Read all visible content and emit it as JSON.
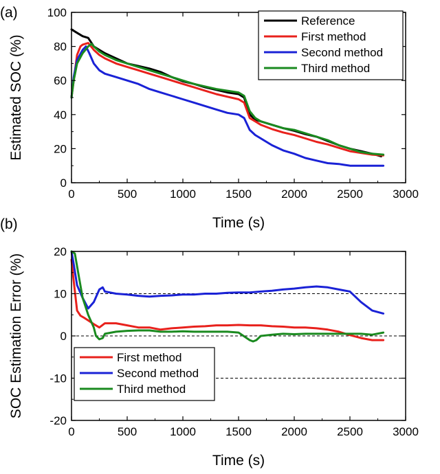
{
  "chart_data": [
    {
      "panel_label": "(a)",
      "type": "line",
      "xlabel": "Time (s)",
      "ylabel": "Estimated SOC (%)",
      "xlim": [
        0,
        3000
      ],
      "ylim": [
        0,
        100
      ],
      "xticks": [
        0,
        500,
        1000,
        1500,
        2000,
        2500,
        3000
      ],
      "yticks": [
        0,
        20,
        40,
        60,
        80,
        100
      ],
      "grid": false,
      "legend_position": "top-right",
      "series": [
        {
          "name": "Reference",
          "color": "#000000",
          "x": [
            0,
            50,
            100,
            150,
            200,
            250,
            300,
            400,
            500,
            600,
            700,
            800,
            900,
            1000,
            1100,
            1200,
            1300,
            1400,
            1500,
            1550,
            1600,
            1650,
            1700,
            1800,
            1900,
            2000,
            2100,
            2200,
            2300,
            2400,
            2500,
            2600,
            2700,
            2780
          ],
          "values": [
            90,
            88,
            86,
            85,
            80,
            78,
            76,
            73,
            70,
            68.5,
            67,
            65,
            62,
            59.5,
            58,
            56,
            54.5,
            53,
            52,
            50,
            40,
            37,
            36,
            34,
            32,
            30.5,
            28.5,
            27,
            24.5,
            22,
            20,
            18.5,
            17,
            15.5
          ]
        },
        {
          "name": "First method",
          "color": "#e8211c",
          "x": [
            0,
            20,
            50,
            80,
            100,
            150,
            200,
            250,
            300,
            400,
            500,
            600,
            700,
            800,
            900,
            1000,
            1100,
            1200,
            1300,
            1400,
            1500,
            1550,
            1600,
            1650,
            1700,
            1800,
            1900,
            2000,
            2100,
            2200,
            2300,
            2400,
            2500,
            2600,
            2700,
            2800
          ],
          "values": [
            50,
            60,
            75,
            80,
            81,
            82,
            78,
            75,
            73,
            70,
            68,
            66,
            64,
            62,
            60,
            58,
            56,
            54,
            52,
            50.5,
            49,
            47,
            38,
            36,
            34,
            31.5,
            29.5,
            28,
            26,
            24,
            22.5,
            20.5,
            18.5,
            17.5,
            16.5,
            16
          ]
        },
        {
          "name": "Second method",
          "color": "#1a22d6",
          "x": [
            0,
            20,
            50,
            100,
            130,
            160,
            200,
            250,
            300,
            400,
            500,
            600,
            700,
            800,
            900,
            1000,
            1100,
            1200,
            1300,
            1400,
            1500,
            1550,
            1600,
            1650,
            1700,
            1800,
            1900,
            2000,
            2100,
            2200,
            2300,
            2400,
            2450,
            2500,
            2600,
            2700,
            2800
          ],
          "values": [
            50,
            62,
            72,
            78,
            80,
            76,
            70,
            66,
            64,
            62,
            60,
            58,
            55,
            53,
            51,
            49,
            47,
            45,
            43,
            41,
            40,
            38,
            31,
            28,
            26,
            22,
            19,
            17,
            14.5,
            13,
            11.5,
            11,
            10.5,
            10,
            10,
            10,
            10
          ]
        },
        {
          "name": "Third method",
          "color": "#1a8a1f",
          "x": [
            0,
            20,
            50,
            100,
            150,
            180,
            200,
            250,
            300,
            400,
            500,
            600,
            700,
            800,
            900,
            1000,
            1100,
            1200,
            1300,
            1400,
            1500,
            1550,
            1600,
            1650,
            1700,
            1800,
            1900,
            2000,
            2100,
            2200,
            2300,
            2400,
            2500,
            2600,
            2700,
            2800
          ],
          "values": [
            50,
            60,
            70,
            76,
            80,
            81.5,
            80,
            77,
            75,
            72,
            70,
            68,
            66,
            64,
            62,
            60,
            58,
            56.5,
            55,
            54,
            53,
            51,
            42,
            38,
            36,
            34,
            32,
            31,
            29,
            27,
            25,
            22,
            20,
            18,
            17,
            16.5
          ]
        }
      ]
    },
    {
      "panel_label": "(b)",
      "type": "line",
      "xlabel": "Time (s)",
      "ylabel": "SOC Estimation Error (%)",
      "xlim": [
        0,
        3000
      ],
      "ylim": [
        -20,
        20
      ],
      "xticks": [
        0,
        500,
        1000,
        1500,
        2000,
        2500,
        3000
      ],
      "yticks": [
        -20,
        -10,
        0,
        10,
        20
      ],
      "reference_lines": [
        10,
        0,
        -10
      ],
      "grid": false,
      "legend_position": "bottom-left",
      "series": [
        {
          "name": "First method",
          "color": "#e8211c",
          "x": [
            0,
            20,
            50,
            80,
            120,
            200,
            250,
            300,
            400,
            500,
            600,
            700,
            800,
            900,
            1000,
            1100,
            1200,
            1300,
            1400,
            1500,
            1600,
            1700,
            1800,
            1900,
            2000,
            2100,
            2200,
            2300,
            2400,
            2500,
            2600,
            2700,
            2800
          ],
          "values": [
            18,
            13,
            6,
            4.8,
            4.2,
            2.8,
            2,
            3,
            3,
            2.5,
            2,
            2,
            1.5,
            1.8,
            2,
            2.2,
            2.3,
            2.5,
            2.5,
            2.6,
            2.5,
            2.5,
            2.3,
            2.2,
            2,
            2,
            1.8,
            1.5,
            1,
            0.2,
            -0.5,
            -1,
            -1
          ]
        },
        {
          "name": "Second method",
          "color": "#1a22d6",
          "x": [
            0,
            20,
            50,
            100,
            150,
            200,
            250,
            280,
            300,
            400,
            500,
            600,
            700,
            800,
            900,
            1000,
            1100,
            1200,
            1300,
            1400,
            1500,
            1600,
            1700,
            1800,
            1900,
            2000,
            2100,
            2200,
            2300,
            2400,
            2500,
            2600,
            2700,
            2800
          ],
          "values": [
            20,
            17,
            12,
            9,
            6.5,
            8,
            11,
            11.5,
            10.5,
            10,
            9.8,
            9.5,
            9.3,
            9.5,
            9.6,
            9.8,
            9.8,
            10,
            10,
            10.2,
            10.3,
            10.3,
            10.5,
            10.7,
            11,
            11.2,
            11.5,
            11.7,
            11.5,
            11,
            10.5,
            8,
            6,
            5.3
          ]
        },
        {
          "name": "Third method",
          "color": "#1a8a1f",
          "x": [
            0,
            30,
            60,
            100,
            150,
            200,
            220,
            250,
            280,
            300,
            400,
            500,
            600,
            700,
            800,
            900,
            1000,
            1100,
            1200,
            1300,
            1400,
            1500,
            1600,
            1630,
            1660,
            1700,
            1800,
            1900,
            2000,
            2100,
            2200,
            2300,
            2400,
            2500,
            2600,
            2700,
            2800
          ],
          "values": [
            20,
            19.5,
            15,
            9,
            5,
            2,
            0,
            -0.8,
            -0.5,
            0.5,
            1,
            1.2,
            1.3,
            1.3,
            1,
            1,
            1.1,
            1,
            1,
            1,
            1,
            0.8,
            -1,
            -1.3,
            -1,
            0,
            0.3,
            0.5,
            0.4,
            0.5,
            0.5,
            0.5,
            0.5,
            0.5,
            0.5,
            0.3,
            0.8
          ]
        }
      ]
    }
  ]
}
